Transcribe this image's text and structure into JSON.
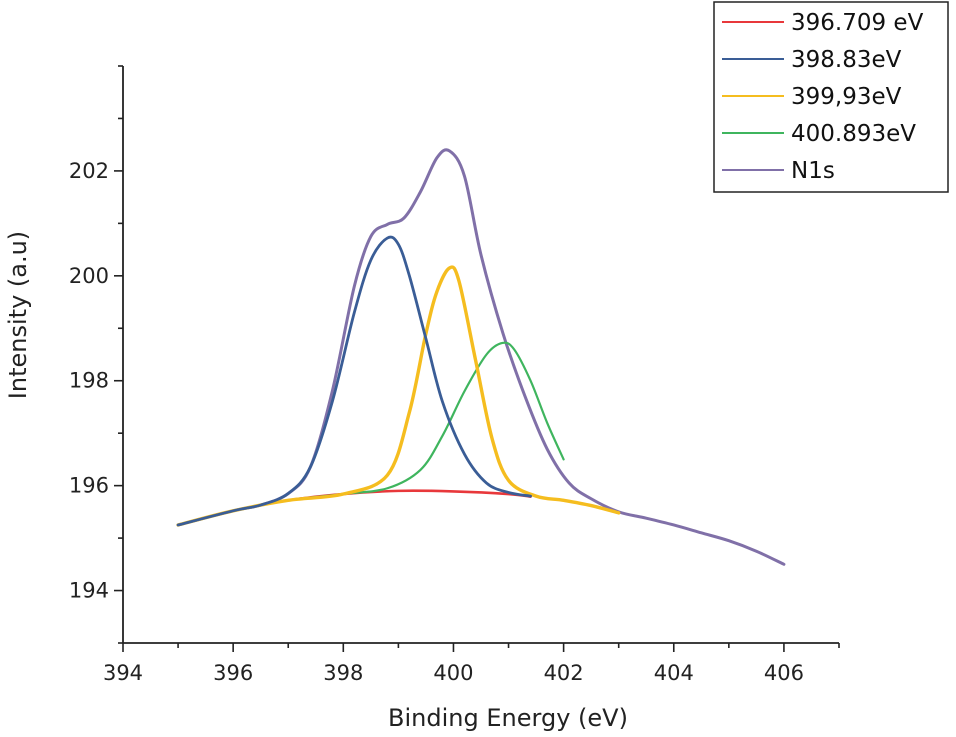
{
  "chart_data": {
    "type": "line",
    "title": "",
    "xlabel": "Binding Energy (eV)",
    "ylabel": "Intensity (a.u)",
    "xlim": [
      394,
      407
    ],
    "ylim": [
      193,
      204
    ],
    "xticks": [
      "394",
      "396",
      "398",
      "400",
      "402",
      "404",
      "406"
    ],
    "yticks": [
      "194",
      "196",
      "198",
      "200",
      "202"
    ],
    "xtick_values": [
      394,
      396,
      398,
      400,
      402,
      404,
      406
    ],
    "ytick_values": [
      194,
      196,
      198,
      200,
      202
    ],
    "grid": false,
    "legend_position": "top-right",
    "series": [
      {
        "name": "396.709 eV",
        "color": "#e8383b",
        "x": [
          395,
          396,
          397,
          398,
          399,
          400,
          401,
          401.4
        ],
        "y": [
          195.25,
          195.52,
          195.72,
          195.84,
          195.9,
          195.89,
          195.84,
          195.79
        ]
      },
      {
        "name": "398.83eV",
        "color": "#3a5d96",
        "x": [
          395,
          396,
          396.5,
          397,
          397.4,
          397.8,
          398.2,
          398.5,
          398.8,
          399.0,
          399.2,
          399.5,
          399.8,
          400.2,
          400.6,
          401.0,
          401.4
        ],
        "y": [
          195.25,
          195.52,
          195.63,
          195.85,
          196.35,
          197.6,
          199.3,
          200.3,
          200.72,
          200.6,
          200.0,
          198.8,
          197.6,
          196.6,
          196.05,
          195.87,
          195.8
        ]
      },
      {
        "name": "399,93eV",
        "color": "#f5bd1f",
        "x": [
          395,
          396,
          397,
          398,
          398.8,
          399.2,
          399.5,
          399.7,
          399.93,
          400.1,
          400.4,
          400.7,
          401.0,
          401.5,
          402.0,
          402.5,
          403.0
        ],
        "y": [
          195.25,
          195.52,
          195.72,
          195.84,
          196.2,
          197.4,
          198.9,
          199.7,
          200.15,
          199.9,
          198.4,
          196.9,
          196.1,
          195.8,
          195.72,
          195.62,
          195.48
        ]
      },
      {
        "name": "400.893eV",
        "color": "#3fb55e",
        "x": [
          395,
          396,
          397,
          398,
          398.8,
          399.4,
          399.8,
          400.2,
          400.6,
          400.89,
          401.1,
          401.4,
          401.7,
          402.0
        ],
        "y": [
          195.25,
          195.52,
          195.72,
          195.84,
          195.95,
          196.3,
          196.95,
          197.8,
          198.5,
          198.72,
          198.6,
          198.0,
          197.2,
          196.5
        ]
      },
      {
        "name": "N1s",
        "color": "#8070a8",
        "x": [
          395,
          396,
          396.5,
          397,
          397.4,
          397.8,
          398.2,
          398.5,
          398.8,
          399.1,
          399.4,
          399.7,
          399.93,
          400.2,
          400.5,
          400.9,
          401.3,
          401.7,
          402.1,
          402.5,
          403.0,
          403.5,
          404.0,
          404.5,
          405.0,
          405.5,
          406.0
        ],
        "y": [
          195.25,
          195.52,
          195.63,
          195.85,
          196.35,
          197.8,
          199.8,
          200.75,
          200.98,
          201.1,
          201.6,
          202.25,
          202.38,
          201.9,
          200.4,
          198.9,
          197.7,
          196.7,
          196.05,
          195.75,
          195.5,
          195.38,
          195.25,
          195.1,
          194.95,
          194.75,
          194.5
        ]
      }
    ]
  }
}
